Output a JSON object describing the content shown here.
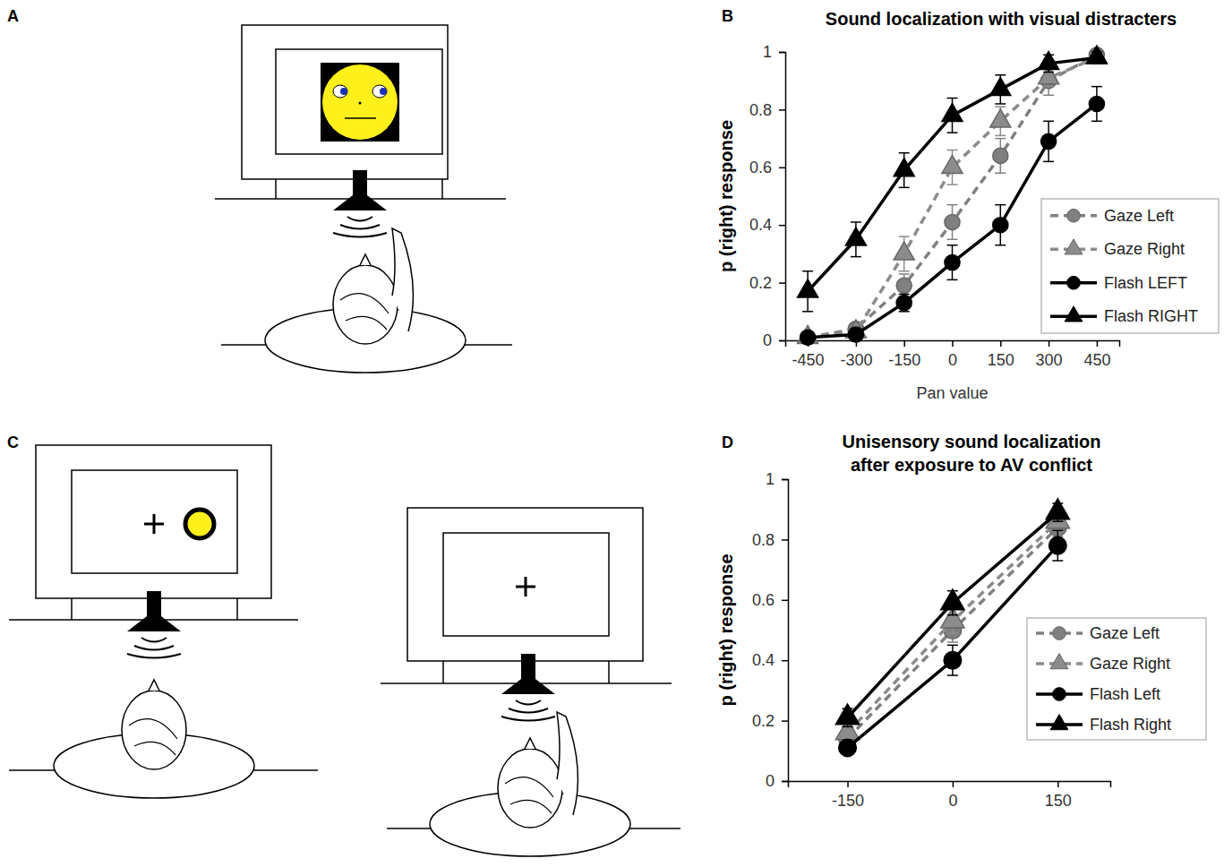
{
  "panel_labels": [
    "A",
    "B",
    "C",
    "D"
  ],
  "chart_data": [
    {
      "type": "line",
      "title": "Sound localization with visual distracters",
      "x_label": "Pan value",
      "y_label": "p (right) response",
      "x": [
        -450,
        -300,
        -150,
        0,
        150,
        300,
        450
      ],
      "xlim": [
        -520,
        520
      ],
      "xticks": [
        -450,
        -300,
        -150,
        0,
        150,
        300,
        450
      ],
      "ylim": [
        0,
        1
      ],
      "yticks": [
        0,
        0.2,
        0.4,
        0.6,
        0.8,
        1
      ],
      "legend": "lower right",
      "series": [
        {
          "name": "Gaze Left",
          "color": "#808080",
          "marker": "circle",
          "line_style": "dashed",
          "values": [
            0.01,
            0.04,
            0.19,
            0.41,
            0.64,
            0.9,
            0.99
          ],
          "errors": [
            0.02,
            0.02,
            0.04,
            0.06,
            0.06,
            0.05,
            0.02
          ]
        },
        {
          "name": "Gaze Right",
          "color": "#8c8c8c",
          "marker": "triangle",
          "line_style": "dashed",
          "values": [
            0.01,
            0.03,
            0.3,
            0.6,
            0.76,
            0.91,
            0.98
          ],
          "errors": [
            0.01,
            0.01,
            0.06,
            0.06,
            0.05,
            0.03,
            0.02
          ]
        },
        {
          "name": "Flash LEFT",
          "color": "#000000",
          "marker": "circle",
          "line_style": "solid",
          "values": [
            0.01,
            0.02,
            0.13,
            0.27,
            0.4,
            0.69,
            0.82
          ],
          "errors": [
            0.01,
            0.01,
            0.03,
            0.06,
            0.07,
            0.07,
            0.06
          ]
        },
        {
          "name": "Flash RIGHT",
          "color": "#000000",
          "marker": "triangle",
          "line_style": "solid",
          "values": [
            0.17,
            0.35,
            0.59,
            0.78,
            0.87,
            0.96,
            0.98
          ],
          "errors": [
            0.07,
            0.06,
            0.06,
            0.06,
            0.05,
            0.03,
            0.02
          ]
        }
      ]
    },
    {
      "type": "line",
      "title": "Unisensory sound localization after exposure to AV conflict",
      "y_label": "p (right) response",
      "x": [
        -150,
        0,
        150
      ],
      "xlim": [
        -235,
        225
      ],
      "xticks": [
        -150,
        0,
        150
      ],
      "ylim": [
        0,
        1
      ],
      "yticks": [
        0,
        0.2,
        0.4,
        0.6,
        0.8,
        1
      ],
      "legend": "lower right",
      "series": [
        {
          "name": "Gaze Left",
          "color": "#808080",
          "marker": "circle",
          "line_style": "dashed",
          "values": [
            0.14,
            0.5,
            0.84
          ],
          "errors": [
            0.02,
            0.04,
            0.03
          ]
        },
        {
          "name": "Gaze Right",
          "color": "#8c8c8c",
          "marker": "triangle",
          "line_style": "dashed",
          "values": [
            0.16,
            0.53,
            0.86
          ],
          "errors": [
            0.02,
            0.04,
            0.03
          ]
        },
        {
          "name": "Flash Left",
          "color": "#000000",
          "marker": "circle",
          "line_style": "solid",
          "values": [
            0.11,
            0.4,
            0.78
          ],
          "errors": [
            0.02,
            0.05,
            0.05
          ]
        },
        {
          "name": "Flash Right",
          "color": "#000000",
          "marker": "triangle",
          "line_style": "solid",
          "values": [
            0.21,
            0.59,
            0.89
          ],
          "errors": [
            0.03,
            0.04,
            0.03
          ]
        }
      ]
    }
  ]
}
